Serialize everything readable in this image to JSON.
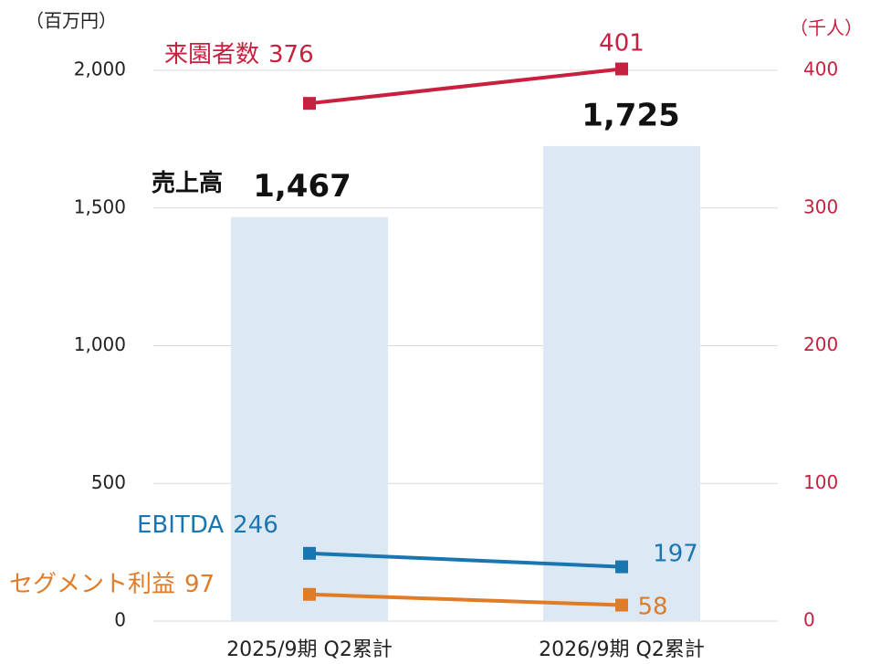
{
  "chart_data": {
    "type": "bar",
    "categories": [
      "2025/9期 Q2累計",
      "2026/9期 Q2累計"
    ],
    "y_unit_label": "（百万円）",
    "y2_unit_label": "（千人）",
    "ylim": [
      0,
      2000
    ],
    "yticks": [
      0,
      500,
      {
        "value": 1000,
        "label": "1,000"
      },
      {
        "value": 1500,
        "label": "1,500"
      },
      {
        "value": 2000,
        "label": "2,000"
      }
    ],
    "y2lim": [
      0,
      400
    ],
    "y2ticks": [
      0,
      100,
      200,
      300,
      400
    ],
    "grid": true,
    "series": [
      {
        "name": "売上高",
        "type": "bar",
        "color": "#dde8f5",
        "values": [
          1467,
          1725
        ],
        "value_labels": [
          "1,467",
          "1,725"
        ]
      },
      {
        "name": "来園者数",
        "type": "line",
        "axis": "y2",
        "color": "#c8203f",
        "values": [
          376,
          401
        ]
      },
      {
        "name": "EBITDA",
        "type": "line",
        "color": "#1a76b0",
        "values": [
          246,
          197
        ]
      },
      {
        "name": "セグメント利益",
        "type": "line",
        "color": "#e07b27",
        "values": [
          97,
          58
        ]
      }
    ]
  }
}
